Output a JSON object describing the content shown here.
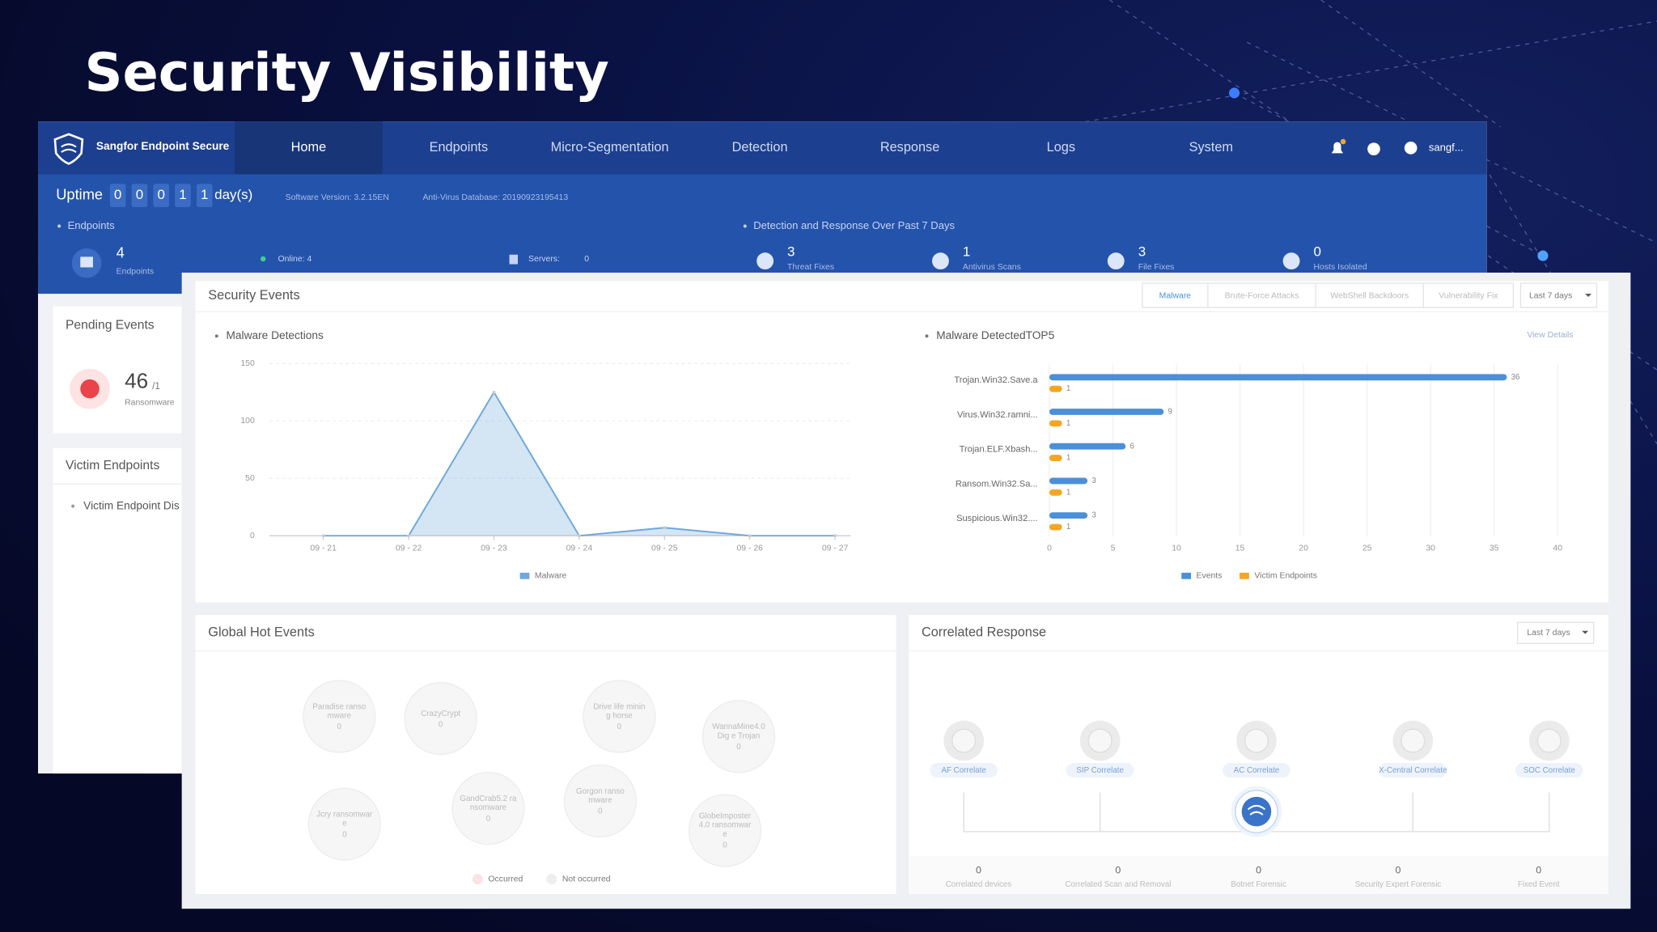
{
  "title": "Security Visibility",
  "nav": {
    "brand": "Sangfor Endpoint Secure",
    "items": [
      "Home",
      "Endpoints",
      "Micro-Segmentation",
      "Detection",
      "Response",
      "Logs",
      "System"
    ],
    "user": "sangf..."
  },
  "status": {
    "uptime_label": "Uptime",
    "uptime_digits": [
      "0",
      "0",
      "0",
      "1",
      "1"
    ],
    "uptime_unit": "day(s)",
    "software_version": "Software Version: 3.2.15EN",
    "antivirus_database": "Anti-Virus Database: 20190923195413"
  },
  "endpoints": {
    "title": "Endpoints",
    "count": "4",
    "count_label": "Endpoints",
    "online": "Online: 4",
    "servers_label": "Servers:",
    "servers": "0"
  },
  "detection": {
    "title": "Detection and Response Over Past 7 Days",
    "items": [
      {
        "value": "3",
        "label": "Threat Fixes"
      },
      {
        "value": "1",
        "label": "Antivirus Scans"
      },
      {
        "value": "3",
        "label": "File Fixes"
      },
      {
        "value": "0",
        "label": "Hosts Isolated"
      }
    ]
  },
  "pending_events": {
    "title": "Pending Events",
    "count": "46",
    "total": "/1",
    "label": "Ransomware"
  },
  "victim_endpoints": {
    "title": "Victim Endpoints",
    "item": "Victim Endpoint Dis"
  },
  "security_events": {
    "title": "Security Events",
    "tabs": [
      "Malware",
      "Brute-Force Attacks",
      "WebShell Backdoors",
      "Vulnerability Fix"
    ],
    "period": "Last 7 days"
  },
  "chart_data": [
    {
      "type": "line",
      "title": "Malware Detections",
      "categories": [
        "09 - 21",
        "09 - 22",
        "09 - 23",
        "09 - 24",
        "09 - 25",
        "09 - 26",
        "09 - 27"
      ],
      "series": [
        {
          "name": "Malware",
          "color": "#6fa8dc",
          "values": [
            0,
            0,
            125,
            0,
            7,
            0,
            0
          ]
        }
      ],
      "ylim": [
        0,
        150
      ],
      "yticks": [
        0,
        50,
        100,
        150
      ],
      "grid": true
    },
    {
      "type": "bar",
      "orientation": "horizontal",
      "title": "Malware DetectedTOP5",
      "link": "View Details",
      "categories": [
        "Trojan.Win32.Save.a",
        "Virus.Win32.ramni...",
        "Trojan.ELF.Xbash...",
        "Ransom.Win32.Sa...",
        "Suspicious.Win32...."
      ],
      "series": [
        {
          "name": "Events",
          "color": "#4a90d9",
          "values": [
            36,
            9,
            6,
            3,
            3
          ]
        },
        {
          "name": "Victim Endpoints",
          "color": "#f5a623",
          "values": [
            1,
            1,
            1,
            1,
            1
          ]
        }
      ],
      "xlim": [
        0,
        40
      ],
      "xticks": [
        0,
        5,
        10,
        15,
        20,
        25,
        30,
        35,
        40
      ],
      "grid": true
    }
  ],
  "global_hot_events": {
    "title": "Global Hot Events",
    "events": [
      {
        "lines": [
          "Paradise ranso",
          "mware"
        ],
        "count": "0"
      },
      {
        "lines": [
          "CrazyCrypt"
        ],
        "count": "0"
      },
      {
        "lines": [
          "Drive life minin",
          "g horse"
        ],
        "count": "0"
      },
      {
        "lines": [
          "WannaMine4.0",
          "Dig e Trojan"
        ],
        "count": "0"
      },
      {
        "lines": [
          "Jcry ransomwar",
          "e"
        ],
        "count": "0"
      },
      {
        "lines": [
          "GandCrab5.2 ra",
          "nsomware"
        ],
        "count": "0"
      },
      {
        "lines": [
          "Gorgon ranso",
          "mware"
        ],
        "count": "0"
      },
      {
        "lines": [
          "GlobeImposter",
          "4.0 ransomwar",
          "e"
        ],
        "count": "0"
      }
    ],
    "legend": [
      "Occurred",
      "Not occurred"
    ]
  },
  "correlated_response": {
    "title": "Correlated Response",
    "period": "Last 7 days",
    "nodes": [
      "AF Correlate",
      "SIP Correlate",
      "AC Correlate",
      "X-Central Correlate",
      "SOC Correlate"
    ],
    "stats": [
      {
        "value": "0",
        "label": "Correlated devices"
      },
      {
        "value": "0",
        "label": "Correlated Scan and Removal"
      },
      {
        "value": "0",
        "label": "Botnet Forensic"
      },
      {
        "value": "0",
        "label": "Security Expert Forensic"
      },
      {
        "value": "0",
        "label": "Fixed Event"
      }
    ]
  }
}
